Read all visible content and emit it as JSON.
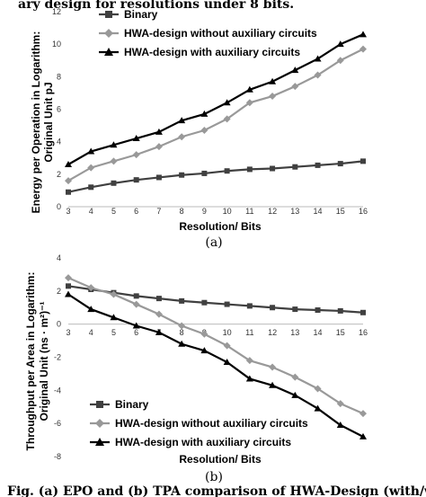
{
  "page": {
    "header_text": "ary design for resolutions under 8 bits.",
    "footer_text": "Fig. (a) EPO and (b) TPA comparison of HWA-Design (with/without auxiliary circuits)"
  },
  "chart_data": [
    {
      "type": "line",
      "subplot_label": "(a)",
      "title": "",
      "xlabel": "Resolution/ Bits",
      "ylabel_line1": "Energy per Operation in Logarithm:",
      "ylabel_line2": "Original Unit pJ",
      "x": [
        3,
        4,
        5,
        6,
        7,
        8,
        9,
        10,
        11,
        12,
        13,
        14,
        15,
        16
      ],
      "xlim": [
        3,
        16
      ],
      "ylim": [
        0,
        12
      ],
      "yticks": [
        0,
        2,
        4,
        6,
        8,
        10,
        12
      ],
      "legend_position": "top-left",
      "grid": false,
      "series": [
        {
          "name": "Binary",
          "marker": "square",
          "color": "#404040",
          "values": [
            0.9,
            1.2,
            1.45,
            1.65,
            1.8,
            1.95,
            2.05,
            2.2,
            2.3,
            2.35,
            2.45,
            2.55,
            2.65,
            2.8
          ]
        },
        {
          "name": "HWA-design without auxiliary circuits",
          "marker": "diamond",
          "color": "#999999",
          "values": [
            1.6,
            2.4,
            2.8,
            3.2,
            3.7,
            4.3,
            4.7,
            5.4,
            6.4,
            6.8,
            7.4,
            8.1,
            9.0,
            9.7
          ]
        },
        {
          "name": "HWA-design with auxiliary circuits",
          "marker": "triangle",
          "color": "#000000",
          "values": [
            2.6,
            3.4,
            3.8,
            4.2,
            4.6,
            5.3,
            5.7,
            6.4,
            7.2,
            7.7,
            8.4,
            9.1,
            10.0,
            10.6
          ]
        }
      ]
    },
    {
      "type": "line",
      "subplot_label": "(b)",
      "title": "",
      "xlabel": "Resolution/ Bits",
      "ylabel_line1": "Throughput per Area in Logarithm:",
      "ylabel_line2": "Original Unit (ns · m²)⁻¹",
      "x": [
        3,
        4,
        5,
        6,
        7,
        8,
        9,
        10,
        11,
        12,
        13,
        14,
        15,
        16
      ],
      "xlim": [
        3,
        16
      ],
      "ylim": [
        -8,
        4
      ],
      "yticks": [
        -8,
        -6,
        -4,
        -2,
        0,
        2,
        4
      ],
      "legend_position": "bottom-left",
      "grid": false,
      "series": [
        {
          "name": "Binary",
          "marker": "square",
          "color": "#404040",
          "values": [
            2.3,
            2.1,
            1.9,
            1.7,
            1.55,
            1.4,
            1.3,
            1.2,
            1.1,
            1.0,
            0.9,
            0.85,
            0.8,
            0.7
          ]
        },
        {
          "name": "HWA-design without auxiliary circuits",
          "marker": "diamond",
          "color": "#999999",
          "values": [
            2.8,
            2.2,
            1.8,
            1.2,
            0.6,
            -0.1,
            -0.6,
            -1.3,
            -2.2,
            -2.6,
            -3.2,
            -3.9,
            -4.8,
            -5.4
          ]
        },
        {
          "name": "HWA-design with auxiliary circuits",
          "marker": "triangle",
          "color": "#000000",
          "values": [
            1.8,
            0.9,
            0.4,
            -0.1,
            -0.5,
            -1.2,
            -1.6,
            -2.3,
            -3.3,
            -3.7,
            -4.3,
            -5.1,
            -6.1,
            -6.8
          ]
        }
      ]
    }
  ]
}
